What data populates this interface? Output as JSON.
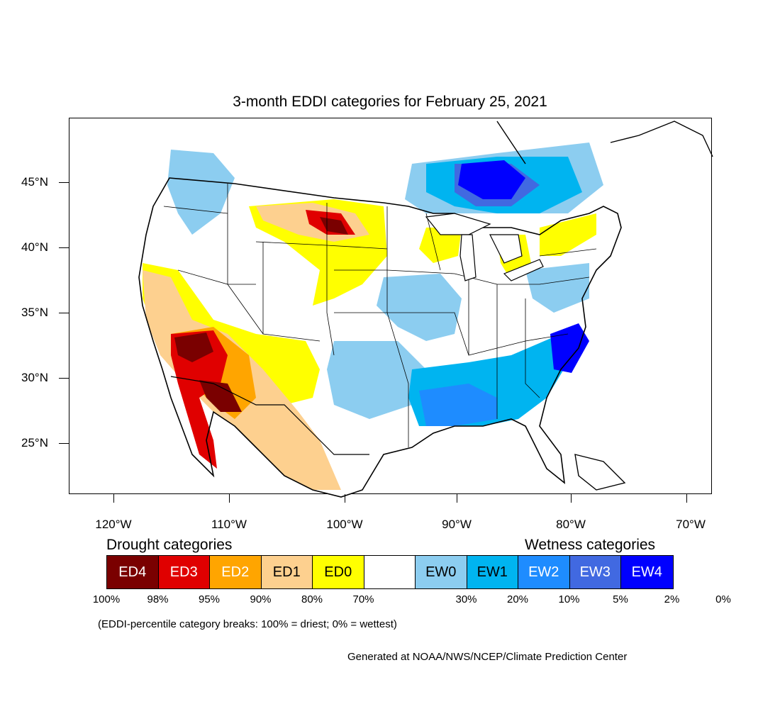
{
  "title": "3-month EDDI categories for February 25, 2021",
  "latitude_labels": [
    "45°N",
    "40°N",
    "35°N",
    "30°N",
    "25°N"
  ],
  "longitude_labels": [
    "120°W",
    "110°W",
    "100°W",
    "90°W",
    "80°W",
    "70°W"
  ],
  "drought_heading": "Drought categories",
  "wetness_heading": "Wetness categories",
  "legend": [
    {
      "label": "ED4",
      "color": "#7a0000",
      "text_color": "#ffffff"
    },
    {
      "label": "ED3",
      "color": "#e00000",
      "text_color": "#ffffff"
    },
    {
      "label": "ED2",
      "color": "#ffa500",
      "text_color": "#ffffff"
    },
    {
      "label": "ED1",
      "color": "#fdd08f",
      "text_color": "#000000"
    },
    {
      "label": "ED0",
      "color": "#ffff00",
      "text_color": "#000000"
    },
    {
      "label": "",
      "color": "#ffffff",
      "text_color": "#000000"
    },
    {
      "label": "EW0",
      "color": "#8ccdf0",
      "text_color": "#000000"
    },
    {
      "label": "EW1",
      "color": "#00b4f0",
      "text_color": "#000000"
    },
    {
      "label": "EW2",
      "color": "#1e8cff",
      "text_color": "#ffffff"
    },
    {
      "label": "EW3",
      "color": "#4169e1",
      "text_color": "#ffffff"
    },
    {
      "label": "EW4",
      "color": "#0000ff",
      "text_color": "#ffffff"
    }
  ],
  "percentiles": [
    "100%",
    "98%",
    "95%",
    "90%",
    "80%",
    "70%",
    "30%",
    "20%",
    "10%",
    "5%",
    "2%",
    "0%"
  ],
  "note": "(EDDI-percentile category breaks: 100% = driest; 0% = wettest)",
  "credit": "Generated at NOAA/NWS/NCEP/Climate Prediction Center"
}
